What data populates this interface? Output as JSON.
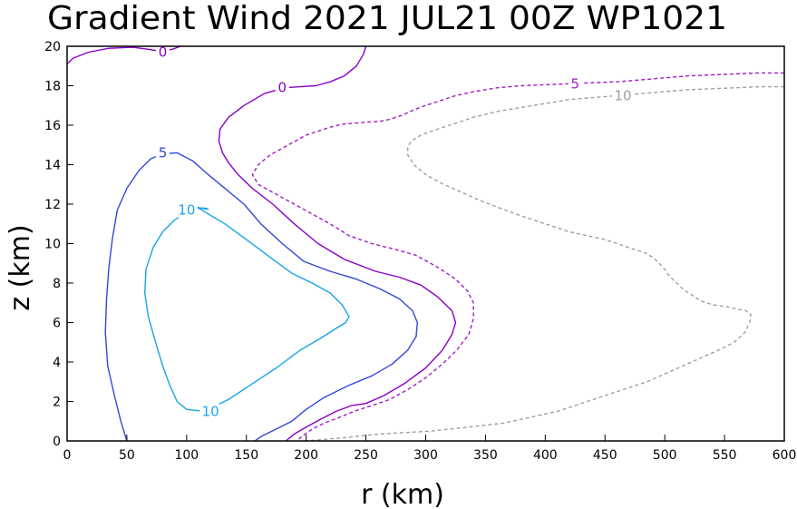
{
  "chart_data": {
    "type": "line",
    "title": "Gradient Wind 2021 JUL21 00Z  WP1021",
    "xlabel": "r (km)",
    "ylabel": "z (km)",
    "xlim": [
      0,
      600
    ],
    "ylim": [
      0,
      20
    ],
    "xticks": [
      0,
      50,
      100,
      150,
      200,
      250,
      300,
      350,
      400,
      450,
      500,
      550,
      600
    ],
    "yticks": [
      0,
      2,
      4,
      6,
      8,
      10,
      12,
      14,
      16,
      18,
      20
    ],
    "grid": false,
    "series": [
      {
        "name": "0 contour (upper left)",
        "level": 0,
        "color": "#8a00c8",
        "dashed": false,
        "x": [
          0,
          5,
          18,
          35,
          55,
          68,
          78,
          88,
          95
        ],
        "y": [
          19.1,
          19.4,
          19.7,
          19.9,
          19.95,
          19.85,
          19.75,
          19.85,
          20.0
        ]
      },
      {
        "name": "0 contour",
        "level": 0,
        "color": "#8a00c8",
        "dashed": false,
        "x": [
          250,
          248,
          242,
          232,
          220,
          208,
          195,
          182,
          165,
          148,
          135,
          128,
          127,
          130,
          135,
          143,
          155,
          172,
          190,
          210,
          232,
          258,
          278,
          296,
          310,
          322,
          325,
          322,
          314,
          300,
          282,
          265,
          250,
          238,
          225,
          212,
          200,
          190,
          183
        ],
        "y": [
          20.0,
          19.6,
          19.0,
          18.5,
          18.2,
          18.0,
          17.95,
          17.9,
          17.6,
          17.0,
          16.4,
          15.8,
          15.2,
          14.6,
          14.1,
          13.5,
          12.8,
          12.0,
          11.0,
          10.0,
          9.2,
          8.6,
          8.3,
          7.9,
          7.3,
          6.6,
          6.0,
          5.4,
          4.6,
          3.7,
          2.9,
          2.3,
          1.9,
          1.8,
          1.5,
          1.1,
          0.7,
          0.35,
          0.0
        ]
      },
      {
        "name": "5 contour",
        "level": 5,
        "color": "#3348d8",
        "dashed": false,
        "x": [
          50,
          45,
          40,
          34,
          32,
          33,
          35,
          38,
          42,
          50,
          60,
          70,
          80,
          92,
          105,
          118,
          132,
          148,
          162,
          180,
          198,
          220,
          242,
          262,
          278,
          289,
          293,
          292,
          285,
          272,
          255,
          235,
          215,
          200,
          188,
          175,
          163,
          157
        ],
        "y": [
          0.0,
          1.0,
          2.2,
          3.8,
          5.5,
          7.2,
          8.8,
          10.3,
          11.7,
          12.8,
          13.7,
          14.3,
          14.55,
          14.6,
          14.2,
          13.5,
          12.8,
          12.0,
          11.0,
          10.0,
          9.1,
          8.6,
          8.2,
          7.7,
          7.2,
          6.6,
          6.0,
          5.3,
          4.6,
          3.9,
          3.3,
          2.8,
          2.2,
          1.6,
          1.0,
          0.6,
          0.25,
          0.0
        ]
      },
      {
        "name": "10 contour (inner)",
        "level": 10,
        "color": "#1aa3e8",
        "dashed": false,
        "x": [
          110,
          100,
          90,
          80,
          72,
          66,
          65,
          68,
          74,
          80,
          86,
          92,
          100,
          115,
          135,
          155,
          175,
          195,
          212,
          225,
          233,
          236,
          230,
          220,
          205,
          188,
          170,
          150,
          132,
          118,
          110,
          107,
          108,
          112,
          116,
          118,
          115,
          110
        ],
        "y": [
          11.8,
          11.6,
          11.2,
          10.6,
          9.8,
          8.7,
          7.5,
          6.3,
          5.0,
          3.8,
          2.8,
          2.0,
          1.6,
          1.5,
          2.1,
          2.9,
          3.7,
          4.6,
          5.2,
          5.7,
          6.0,
          6.3,
          6.9,
          7.5,
          8.0,
          8.5,
          9.3,
          10.2,
          11.0,
          11.5,
          11.8,
          11.9,
          11.85,
          11.8,
          11.75,
          11.75,
          11.8,
          11.8
        ]
      },
      {
        "name": "5 contour (dashed)",
        "level": 5,
        "color": "#a01ac8",
        "dashed": true,
        "x": [
          600,
          580,
          560,
          540,
          520,
          500,
          480,
          460,
          440,
          420,
          400,
          380,
          360,
          340,
          325,
          310,
          295,
          280,
          270,
          262,
          250,
          240,
          230,
          220,
          200,
          185,
          170,
          160,
          155,
          160,
          175,
          190,
          205,
          220,
          236,
          255,
          275,
          292,
          310,
          325,
          335,
          340,
          340,
          336,
          326,
          314,
          300,
          285,
          270,
          255,
          240,
          228,
          215,
          205,
          198,
          192
        ],
        "y": [
          18.65,
          18.65,
          18.6,
          18.55,
          18.5,
          18.4,
          18.3,
          18.2,
          18.15,
          18.1,
          18.05,
          18.0,
          17.9,
          17.7,
          17.5,
          17.2,
          16.9,
          16.5,
          16.3,
          16.2,
          16.15,
          16.1,
          16.05,
          15.9,
          15.5,
          15.0,
          14.5,
          14.0,
          13.5,
          13.0,
          12.5,
          12.0,
          11.5,
          11.0,
          10.4,
          10.0,
          9.7,
          9.4,
          8.8,
          8.2,
          7.6,
          7.0,
          6.2,
          5.4,
          4.6,
          3.9,
          3.2,
          2.6,
          2.1,
          1.8,
          1.5,
          1.2,
          0.9,
          0.6,
          0.3,
          0.0
        ]
      },
      {
        "name": "10 contour (dashed)",
        "level": 10,
        "color": "#a0a0a0",
        "dashed": true,
        "x": [
          600,
          580,
          560,
          540,
          520,
          500,
          480,
          460,
          440,
          420,
          400,
          380,
          360,
          340,
          325,
          310,
          296,
          288,
          285,
          285,
          290,
          300,
          315,
          330,
          345,
          362,
          380,
          400,
          420,
          450,
          470,
          485,
          492,
          497,
          500,
          502,
          505,
          508,
          512,
          515,
          520,
          525,
          530,
          540,
          552,
          560,
          568,
          572,
          571,
          567,
          558,
          545,
          530,
          515,
          500,
          485,
          470,
          455,
          440,
          425,
          410,
          395,
          380,
          365,
          350,
          335,
          320,
          305,
          290,
          275,
          262,
          252,
          244,
          238,
          230,
          220,
          210,
          198
        ],
        "y": [
          17.95,
          17.95,
          17.9,
          17.85,
          17.8,
          17.7,
          17.6,
          17.5,
          17.4,
          17.3,
          17.1,
          16.9,
          16.7,
          16.4,
          16.1,
          15.8,
          15.5,
          15.2,
          14.9,
          14.5,
          14.0,
          13.5,
          13.0,
          12.6,
          12.2,
          11.8,
          11.4,
          11.0,
          10.6,
          10.2,
          9.8,
          9.5,
          9.2,
          8.9,
          8.7,
          8.5,
          8.3,
          8.1,
          7.9,
          7.7,
          7.5,
          7.3,
          7.1,
          6.9,
          6.8,
          6.7,
          6.6,
          6.4,
          6.0,
          5.5,
          5.0,
          4.6,
          4.2,
          3.8,
          3.4,
          3.0,
          2.7,
          2.4,
          2.1,
          1.8,
          1.5,
          1.3,
          1.1,
          0.9,
          0.8,
          0.7,
          0.6,
          0.5,
          0.45,
          0.4,
          0.35,
          0.3,
          0.25,
          0.2,
          0.15,
          0.1,
          0.05,
          0.0
        ]
      }
    ],
    "annotations": [
      {
        "text": "0",
        "x": 80,
        "y": 19.7,
        "color": "#8a00c8"
      },
      {
        "text": "0",
        "x": 180,
        "y": 17.9,
        "color": "#8a00c8"
      },
      {
        "text": "5",
        "x": 80,
        "y": 14.6,
        "color": "#3348d8"
      },
      {
        "text": "10",
        "x": 100,
        "y": 11.7,
        "color": "#1aa3e8"
      },
      {
        "text": "10",
        "x": 120,
        "y": 1.5,
        "color": "#1aa3e8"
      },
      {
        "text": "5",
        "x": 425,
        "y": 18.1,
        "color": "#a01ac8"
      },
      {
        "text": "10",
        "x": 465,
        "y": 17.5,
        "color": "#a0a0a0"
      }
    ]
  }
}
